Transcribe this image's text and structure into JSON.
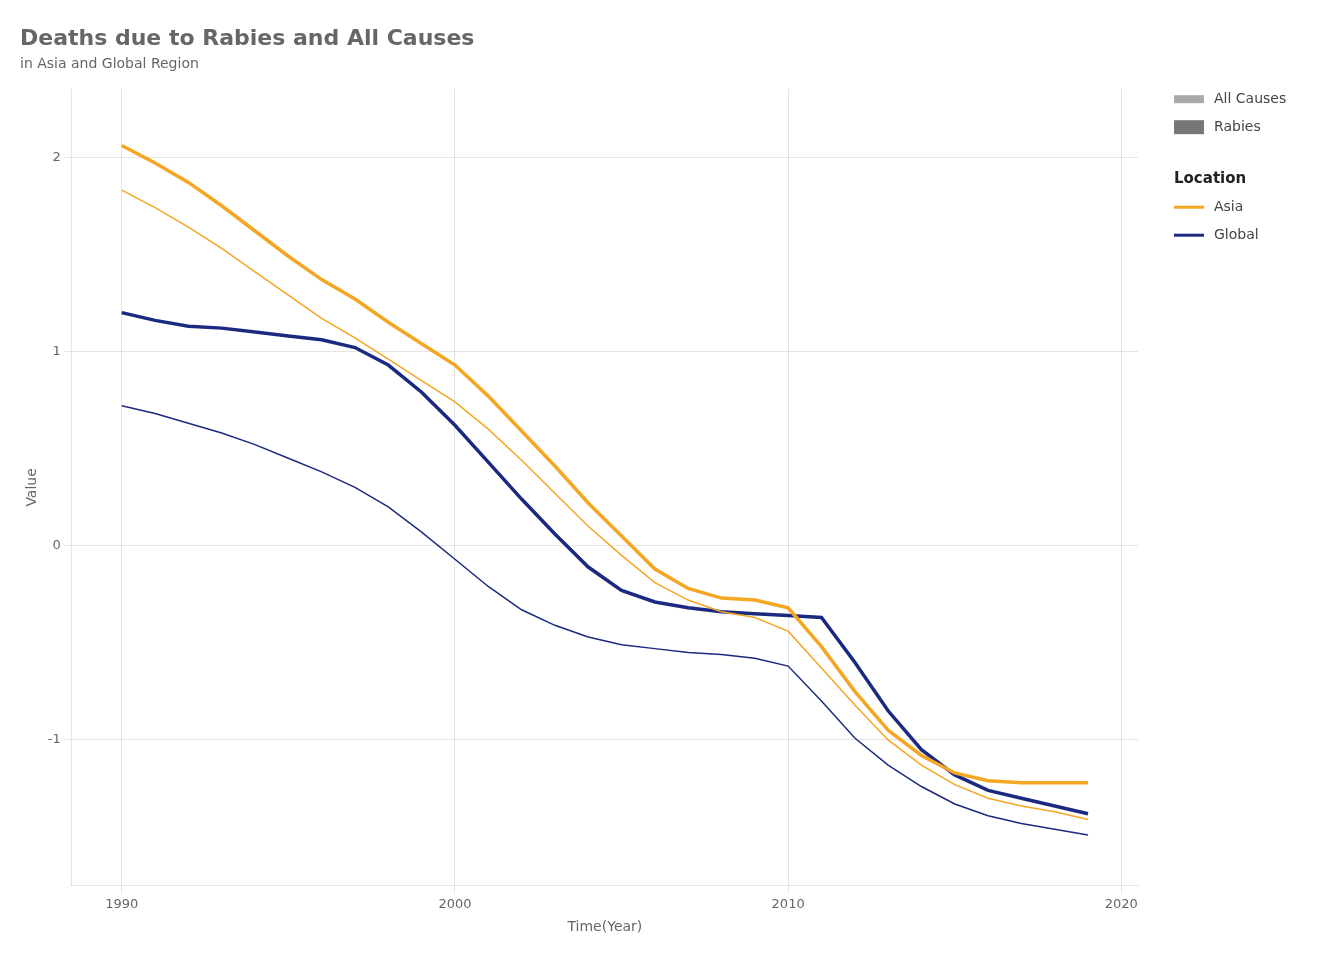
{
  "chart_data": {
    "type": "line",
    "title": "Deaths due to Rabies and All Causes",
    "subtitle": "in Asia and Global Region",
    "xlabel": "Time(Year)",
    "ylabel": "Value",
    "x": [
      1990,
      1991,
      1992,
      1993,
      1994,
      1995,
      1996,
      1997,
      1998,
      1999,
      2000,
      2001,
      2002,
      2003,
      2004,
      2005,
      2006,
      2007,
      2008,
      2009,
      2010,
      2011,
      2012,
      2013,
      2014,
      2015,
      2016,
      2017,
      2018,
      2019
    ],
    "series": [
      {
        "name": "Asia",
        "group": "All Causes",
        "color": "#F5A623",
        "values": [
          1.83,
          1.74,
          1.64,
          1.53,
          1.41,
          1.29,
          1.17,
          1.07,
          0.96,
          0.85,
          0.74,
          0.6,
          0.44,
          0.27,
          0.1,
          -0.05,
          -0.19,
          -0.28,
          -0.34,
          -0.37,
          -0.44,
          -0.63,
          -0.82,
          -1.0,
          -1.13,
          -1.23,
          -1.3,
          -1.34,
          -1.37,
          -1.41
        ]
      },
      {
        "name": "Asia",
        "group": "Rabies",
        "color": "#F5A623",
        "values": [
          2.06,
          1.97,
          1.87,
          1.75,
          1.62,
          1.49,
          1.37,
          1.27,
          1.15,
          1.04,
          0.93,
          0.77,
          0.59,
          0.41,
          0.22,
          0.05,
          -0.12,
          -0.22,
          -0.27,
          -0.28,
          -0.32,
          -0.52,
          -0.75,
          -0.95,
          -1.08,
          -1.17,
          -1.21,
          -1.22,
          -1.22,
          -1.22
        ]
      },
      {
        "name": "Global",
        "group": "All Causes",
        "color": "#1B2A80",
        "values": [
          0.72,
          0.68,
          0.63,
          0.58,
          0.52,
          0.45,
          0.38,
          0.3,
          0.2,
          0.07,
          -0.07,
          -0.21,
          -0.33,
          -0.41,
          -0.47,
          -0.51,
          -0.53,
          -0.55,
          -0.56,
          -0.58,
          -0.62,
          -0.8,
          -0.99,
          -1.13,
          -1.24,
          -1.33,
          -1.39,
          -1.43,
          -1.46,
          -1.49
        ]
      },
      {
        "name": "Global",
        "group": "Rabies",
        "color": "#1B2A80",
        "values": [
          1.2,
          1.16,
          1.13,
          1.12,
          1.1,
          1.08,
          1.06,
          1.02,
          0.93,
          0.79,
          0.62,
          0.43,
          0.24,
          0.06,
          -0.11,
          -0.23,
          -0.29,
          -0.32,
          -0.34,
          -0.35,
          -0.36,
          -0.37,
          -0.6,
          -0.85,
          -1.05,
          -1.18,
          -1.26,
          -1.3,
          -1.34,
          -1.38
        ]
      }
    ],
    "xlim": [
      1988.5,
      2020.5
    ],
    "xticks": [
      1990,
      2000,
      2010,
      2020
    ],
    "ylim": [
      -1.75,
      2.35
    ],
    "yticks": [
      -1,
      0,
      1,
      2
    ],
    "grid": true,
    "legend": "right",
    "legend_title": "Location"
  }
}
